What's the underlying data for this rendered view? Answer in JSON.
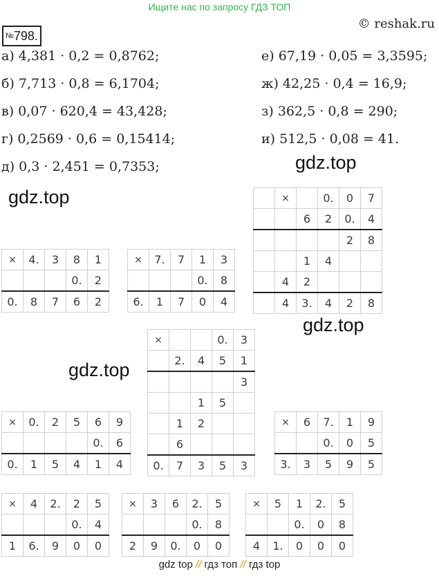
{
  "header": {
    "banner": "Ищите нас по запросу ГДЗ ТОП",
    "site": "© reshak.ru",
    "task_sign": "№",
    "task_number": "798."
  },
  "equations": {
    "left": [
      "а) 4,381 · 0,2 = 0,8762;",
      "б) 7,713 · 0,8 = 6,1704;",
      "в) 0,07 · 620,4 = 43,428;",
      "г) 0,2569 · 0,6 = 0,15414;",
      "д) 0,3 · 2,451 = 0,7353;"
    ],
    "right": [
      "е) 67,19 · 0,05 = 3,3595;",
      "ж) 42,25 · 0,4 = 16,9;",
      "з) 362,5 · 0,8 = 290;",
      "и) 512,5 · 0,08 = 41."
    ]
  },
  "watermark": "gdz.top",
  "footer": {
    "part1": "gdz top",
    "sep": "//",
    "part2": "гдз топ",
    "part3": "гдз top"
  },
  "multiplications": [
    {
      "id": "a",
      "rows": [
        [
          "×",
          "4.",
          "3",
          "8",
          "1"
        ],
        [
          "",
          "",
          "",
          "0.",
          "2"
        ],
        [
          "0.",
          "8",
          "7",
          "6",
          "2"
        ]
      ],
      "lines": [
        1
      ]
    },
    {
      "id": "b",
      "rows": [
        [
          "×",
          "7.",
          "7",
          "1",
          "3"
        ],
        [
          "",
          "",
          "",
          "0.",
          "8"
        ],
        [
          "6.",
          "1",
          "7",
          "0",
          "4"
        ]
      ],
      "lines": [
        1
      ]
    },
    {
      "id": "v",
      "rows": [
        [
          "",
          "×",
          "",
          "0.",
          "0",
          "7"
        ],
        [
          "",
          "",
          "6",
          "2",
          "0.",
          "4"
        ],
        [
          "",
          "",
          "",
          "",
          "2",
          "8"
        ],
        [
          "",
          "",
          "1",
          "4",
          "",
          ""
        ],
        [
          "",
          "4",
          "2",
          "",
          "",
          ""
        ],
        [
          "",
          "4",
          "3.",
          "4",
          "2",
          "8"
        ]
      ],
      "lines": [
        1,
        4
      ]
    },
    {
      "id": "d",
      "rows": [
        [
          "×",
          "",
          "",
          "0.",
          "3"
        ],
        [
          "",
          "2.",
          "4",
          "5",
          "1"
        ],
        [
          "",
          "",
          "",
          "",
          "3"
        ],
        [
          "",
          "",
          "1",
          "5",
          ""
        ],
        [
          "",
          "1",
          "2",
          "",
          ""
        ],
        [
          "",
          "6",
          "",
          "",
          ""
        ],
        [
          "0.",
          "7",
          "3",
          "5",
          "3"
        ]
      ],
      "lines": [
        1,
        5
      ]
    },
    {
      "id": "g",
      "rows": [
        [
          "×",
          "0.",
          "2",
          "5",
          "6",
          "9"
        ],
        [
          "",
          "",
          "",
          "",
          "0.",
          "6"
        ],
        [
          "0.",
          "1",
          "5",
          "4",
          "1",
          "4"
        ]
      ],
      "lines": [
        1
      ]
    },
    {
      "id": "e",
      "rows": [
        [
          "×",
          "6",
          "7.",
          "1",
          "9"
        ],
        [
          "",
          "",
          "0.",
          "0",
          "5"
        ],
        [
          "3.",
          "3",
          "5",
          "9",
          "5"
        ]
      ],
      "lines": [
        1
      ]
    },
    {
      "id": "zh",
      "rows": [
        [
          "×",
          "4",
          "2.",
          "2",
          "5"
        ],
        [
          "",
          "",
          "",
          "0.",
          "4"
        ],
        [
          "1",
          "6.",
          "9",
          "0",
          "0"
        ]
      ],
      "lines": [
        1
      ]
    },
    {
      "id": "z",
      "rows": [
        [
          "×",
          "3",
          "6",
          "2.",
          "5"
        ],
        [
          "",
          "",
          "",
          "0.",
          "8"
        ],
        [
          "2",
          "9",
          "0.",
          "0",
          "0"
        ]
      ],
      "lines": [
        1
      ]
    },
    {
      "id": "i",
      "rows": [
        [
          "×",
          "5",
          "1",
          "2.",
          "5"
        ],
        [
          "",
          "",
          "0.",
          "0",
          "8"
        ],
        [
          "4",
          "1.",
          "0",
          "0",
          "0"
        ]
      ],
      "lines": [
        1
      ]
    }
  ]
}
